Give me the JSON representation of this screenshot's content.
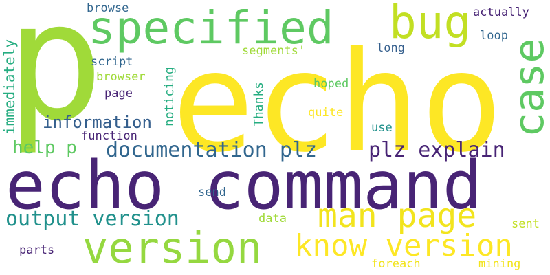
{
  "palette": {
    "dark_purple": "#482475",
    "deep_blue": "#31668e",
    "slate_blue": "#355f8d",
    "teal": "#21918c",
    "sea_green": "#26ad81",
    "green": "#5ec962",
    "lime": "#95d840",
    "yellow_green": "#c2df23",
    "yellow": "#fde725",
    "gold": "#f2e41d"
  },
  "words": {
    "p": "p",
    "echo": "echo",
    "echo_command": "echo command",
    "specified": "specified",
    "version": "version",
    "bug": "bug",
    "case": "case",
    "man_page": "man page",
    "know_version": "know version",
    "documentation_plz": "documentation plz",
    "plz_explain": "plz explain",
    "output_version": "output version",
    "information": "information",
    "help_p": "help p",
    "immediately": "immediately",
    "noticing": "noticing",
    "thanks": "Thanks",
    "browse": "browse",
    "actually": "actually",
    "loop": "loop",
    "long": "long",
    "segments": "segments'",
    "script": "script",
    "browser": "browser",
    "page": "page",
    "hoped": "hoped",
    "quite": "quite",
    "use": "use",
    "function": "function",
    "send": "send",
    "data": "data",
    "sent": "sent",
    "parts": "parts",
    "foreach": "foreach",
    "mining": "mining"
  }
}
